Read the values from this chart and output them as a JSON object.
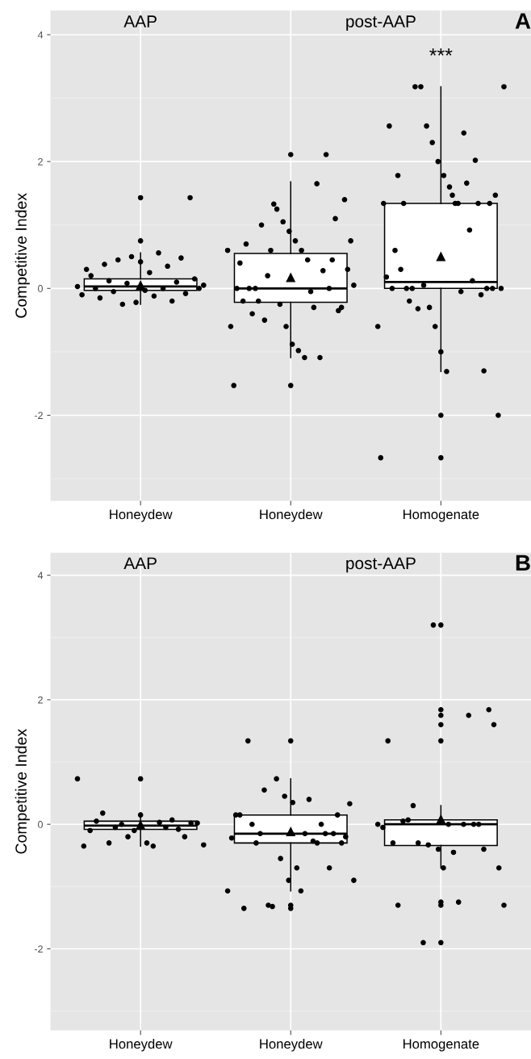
{
  "chart_data": [
    {
      "type": "box",
      "categories": [
        "Honeydew",
        "Honeydew",
        "Homogenate"
      ],
      "ylabel": "Competitive Index",
      "ylim": [
        -3.35,
        4.38
      ],
      "yticks": [
        -2,
        0,
        2,
        4
      ],
      "grid": true,
      "marker": "circle",
      "annotations": [
        "AAP",
        "post-AAP",
        "A",
        "***"
      ],
      "boxes": [
        {
          "low": -0.25,
          "q1": -0.03,
          "median": 0.03,
          "q3": 0.15,
          "high": 0.56,
          "mean": 0.05,
          "outliers": [
            1.43,
            0.75
          ]
        },
        {
          "low": -1.09,
          "q1": -0.22,
          "median": 0,
          "q3": 0.55,
          "high": 1.68,
          "mean": 0.17,
          "outliers": [
            2.11,
            -1.53
          ]
        },
        {
          "low": -1.31,
          "q1": 0,
          "median": 0.1,
          "q3": 1.34,
          "high": 3.18,
          "mean": 0.5,
          "outliers": [
            -2,
            -2.67
          ]
        }
      ],
      "series": [
        {
          "type": "scatter",
          "color": "#000000",
          "values": [
            0.03,
            0.6,
            -0.6
          ]
        },
        {
          "type": "scatter",
          "color": "#000000",
          "values": [
            -0.1,
            -0.6,
            -2.67
          ]
        },
        {
          "type": "scatter",
          "color": "#000000",
          "values": [
            0.3,
            -1.53,
            1.34
          ]
        },
        {
          "type": "scatter",
          "color": "#000000",
          "values": [
            0.2,
            0,
            0.18
          ]
        },
        {
          "type": "scatter",
          "color": "#000000",
          "values": [
            0,
            0.4,
            2.56
          ]
        },
        {
          "type": "scatter",
          "color": "#000000",
          "values": [
            -0.15,
            -0.2,
            0
          ]
        },
        {
          "type": "scatter",
          "color": "#000000",
          "values": [
            0.38,
            0.7,
            0.6
          ]
        },
        {
          "type": "scatter",
          "color": "#000000",
          "values": [
            0.12,
            0,
            1.78
          ]
        },
        {
          "type": "scatter",
          "color": "#000000",
          "values": [
            -0.05,
            -0.4,
            0.3
          ]
        },
        {
          "type": "scatter",
          "color": "#000000",
          "values": [
            0.45,
            0,
            1.34
          ]
        },
        {
          "type": "scatter",
          "color": "#000000",
          "values": [
            -0.25,
            -0.2,
            0
          ]
        },
        {
          "type": "scatter",
          "color": "#000000",
          "values": [
            0.08,
            1.0,
            -0.2
          ]
        },
        {
          "type": "scatter",
          "color": "#000000",
          "values": [
            0.5,
            -0.5,
            0
          ]
        },
        {
          "type": "scatter",
          "color": "#000000",
          "values": [
            -0.22,
            0.2,
            3.18
          ]
        },
        {
          "type": "scatter",
          "color": "#000000",
          "values": [
            0.42,
            0.6,
            -0.32
          ]
        },
        {
          "type": "scatter",
          "color": "#000000",
          "values": [
            -0.03,
            1.33,
            3.18
          ]
        },
        {
          "type": "scatter",
          "color": "#000000",
          "values": [
            0.25,
            1.25,
            0.05
          ]
        },
        {
          "type": "scatter",
          "color": "#000000",
          "values": [
            -0.12,
            -0.25,
            2.56
          ]
        },
        {
          "type": "scatter",
          "color": "#000000",
          "values": [
            0.56,
            1.05,
            -0.3
          ]
        },
        {
          "type": "scatter",
          "color": "#000000",
          "values": [
            0,
            -0.6,
            2.3
          ]
        },
        {
          "type": "scatter",
          "color": "#000000",
          "values": [
            0.35,
            0.9,
            -0.6
          ]
        },
        {
          "type": "scatter",
          "color": "#000000",
          "values": [
            -0.2,
            -0.88,
            2.0
          ]
        },
        {
          "type": "scatter",
          "color": "#000000",
          "values": [
            0.1,
            0.75,
            -1.0
          ]
        },
        {
          "type": "scatter",
          "color": "#000000",
          "values": [
            0.48,
            -0.98,
            1.78
          ]
        },
        {
          "type": "scatter",
          "color": "#000000",
          "values": [
            -0.08,
            0.6,
            -1.31
          ]
        },
        {
          "type": "scatter",
          "color": "#000000",
          "values": [
            1.43,
            -1.09,
            1.6
          ]
        },
        {
          "type": "scatter",
          "color": "#000000",
          "values": [
            0.15,
            0.45,
            1.47
          ]
        },
        {
          "type": "scatter",
          "color": "#000000",
          "values": [
            0,
            -0.05,
            1.34
          ]
        },
        {
          "type": "scatter",
          "color": "#000000",
          "values": [
            0.05,
            -0.3,
            1.34
          ]
        },
        {
          "type": "scatter",
          "color": "#000000",
          "values": [
            null,
            1.65,
            -0.05
          ]
        },
        {
          "type": "scatter",
          "color": "#000000",
          "values": [
            null,
            -1.09,
            2.45
          ]
        },
        {
          "type": "scatter",
          "color": "#000000",
          "values": [
            null,
            0.28,
            1.66
          ]
        },
        {
          "type": "scatter",
          "color": "#000000",
          "values": [
            null,
            2.11,
            0.92
          ]
        },
        {
          "type": "scatter",
          "color": "#000000",
          "values": [
            null,
            0,
            0.12
          ]
        },
        {
          "type": "scatter",
          "color": "#000000",
          "values": [
            null,
            0.45,
            2.02
          ]
        },
        {
          "type": "scatter",
          "color": "#000000",
          "values": [
            null,
            1.1,
            1.34
          ]
        },
        {
          "type": "scatter",
          "color": "#000000",
          "values": [
            null,
            -0.35,
            -0.1
          ]
        },
        {
          "type": "scatter",
          "color": "#000000",
          "values": [
            null,
            -0.3,
            -1.3
          ]
        },
        {
          "type": "scatter",
          "color": "#000000",
          "values": [
            null,
            1.4,
            0
          ]
        },
        {
          "type": "scatter",
          "color": "#000000",
          "values": [
            null,
            0.3,
            1.34
          ]
        },
        {
          "type": "scatter",
          "color": "#000000",
          "values": [
            null,
            0.75,
            0
          ]
        },
        {
          "type": "scatter",
          "color": "#000000",
          "values": [
            null,
            0.05,
            1.47
          ]
        },
        {
          "type": "scatter",
          "color": "#000000",
          "values": [
            null,
            null,
            -2
          ]
        },
        {
          "type": "scatter",
          "color": "#000000",
          "values": [
            null,
            null,
            0
          ]
        },
        {
          "type": "scatter",
          "color": "#000000",
          "values": [
            null,
            null,
            3.18
          ]
        }
      ]
    },
    {
      "type": "box",
      "categories": [
        "Honeydew",
        "Honeydew",
        "Homogenate"
      ],
      "ylabel": "Competitive Index",
      "ylim": [
        -3.31,
        4.36
      ],
      "yticks": [
        -2,
        0,
        2,
        4
      ],
      "grid": true,
      "marker": "circle",
      "annotations": [
        "AAP",
        "post-AAP",
        "B"
      ],
      "boxes": [
        {
          "low": -0.35,
          "q1": -0.08,
          "median": -0.02,
          "q3": 0.05,
          "high": 0.18,
          "mean": -0.01,
          "outliers": [
            0.73
          ]
        },
        {
          "low": -1.07,
          "q1": -0.3,
          "median": -0.15,
          "q3": 0.15,
          "high": 0.73,
          "mean": -0.12,
          "outliers": [
            1.34,
            -1.3,
            -1.35
          ]
        },
        {
          "low": -0.7,
          "q1": -0.34,
          "median": 0,
          "q3": 0.07,
          "high": 0.3,
          "mean": 0.08,
          "outliers": [
            3.2,
            1.84,
            1.75,
            1.6,
            1.34,
            -1.25,
            -1.3,
            -1.9
          ]
        }
      ],
      "series": [
        {
          "type": "scatter",
          "color": "#000000",
          "values": [
            0.73,
            -1.07,
            0
          ]
        },
        {
          "type": "scatter",
          "color": "#000000",
          "values": [
            -0.35,
            -0.22,
            -0.05
          ]
        },
        {
          "type": "scatter",
          "color": "#000000",
          "values": [
            -0.1,
            0.15,
            1.34
          ]
        },
        {
          "type": "scatter",
          "color": "#000000",
          "values": [
            0.05,
            0.15,
            -0.3
          ]
        },
        {
          "type": "scatter",
          "color": "#000000",
          "values": [
            0.18,
            -1.35,
            -1.3
          ]
        },
        {
          "type": "scatter",
          "color": "#000000",
          "values": [
            -0.3,
            1.34,
            0.05
          ]
        },
        {
          "type": "scatter",
          "color": "#000000",
          "values": [
            -0.05,
            0,
            0.07
          ]
        },
        {
          "type": "scatter",
          "color": "#000000",
          "values": [
            0,
            -0.3,
            0.3
          ]
        },
        {
          "type": "scatter",
          "color": "#000000",
          "values": [
            -0.2,
            -0.15,
            -0.3
          ]
        },
        {
          "type": "scatter",
          "color": "#000000",
          "values": [
            -0.1,
            0.55,
            -1.9
          ]
        },
        {
          "type": "scatter",
          "color": "#000000",
          "values": [
            0.15,
            -1.3,
            -0.33
          ]
        },
        {
          "type": "scatter",
          "color": "#000000",
          "values": [
            -0.3,
            -1.32,
            3.2
          ]
        },
        {
          "type": "scatter",
          "color": "#000000",
          "values": [
            -0.35,
            0.73,
            -0.4
          ]
        },
        {
          "type": "scatter",
          "color": "#000000",
          "values": [
            0.03,
            -0.55,
            -0.7
          ]
        },
        {
          "type": "scatter",
          "color": "#000000",
          "values": [
            -0.05,
            0.45,
            0
          ]
        },
        {
          "type": "scatter",
          "color": "#000000",
          "values": [
            0.07,
            -0.9,
            -0.45
          ]
        },
        {
          "type": "scatter",
          "color": "#000000",
          "values": [
            -0.08,
            0.35,
            -1.25
          ]
        },
        {
          "type": "scatter",
          "color": "#000000",
          "values": [
            -0.2,
            -0.7,
            0
          ]
        },
        {
          "type": "scatter",
          "color": "#000000",
          "values": [
            0.02,
            -1.07,
            1.75
          ]
        },
        {
          "type": "scatter",
          "color": "#000000",
          "values": [
            0.02,
            -0.15,
            0
          ]
        },
        {
          "type": "scatter",
          "color": "#000000",
          "values": [
            -0.33,
            0.4,
            0
          ]
        },
        {
          "type": "scatter",
          "color": "#000000",
          "values": [
            null,
            -0.27,
            -0.4
          ]
        },
        {
          "type": "scatter",
          "color": "#000000",
          "values": [
            null,
            -0.3,
            1.84
          ]
        },
        {
          "type": "scatter",
          "color": "#000000",
          "values": [
            null,
            0,
            1.6
          ]
        },
        {
          "type": "scatter",
          "color": "#000000",
          "values": [
            null,
            -0.15,
            -0.7
          ]
        },
        {
          "type": "scatter",
          "color": "#000000",
          "values": [
            null,
            -0.7,
            -1.3
          ]
        },
        {
          "type": "scatter",
          "color": "#000000",
          "values": [
            null,
            -0.15,
            null
          ]
        },
        {
          "type": "scatter",
          "color": "#000000",
          "values": [
            null,
            0.15,
            null
          ]
        },
        {
          "type": "scatter",
          "color": "#000000",
          "values": [
            null,
            -0.3,
            null
          ]
        },
        {
          "type": "scatter",
          "color": "#000000",
          "values": [
            null,
            -0.2,
            null
          ]
        },
        {
          "type": "scatter",
          "color": "#000000",
          "values": [
            null,
            0.33,
            null
          ]
        },
        {
          "type": "scatter",
          "color": "#000000",
          "values": [
            null,
            -0.9,
            null
          ]
        }
      ]
    }
  ]
}
